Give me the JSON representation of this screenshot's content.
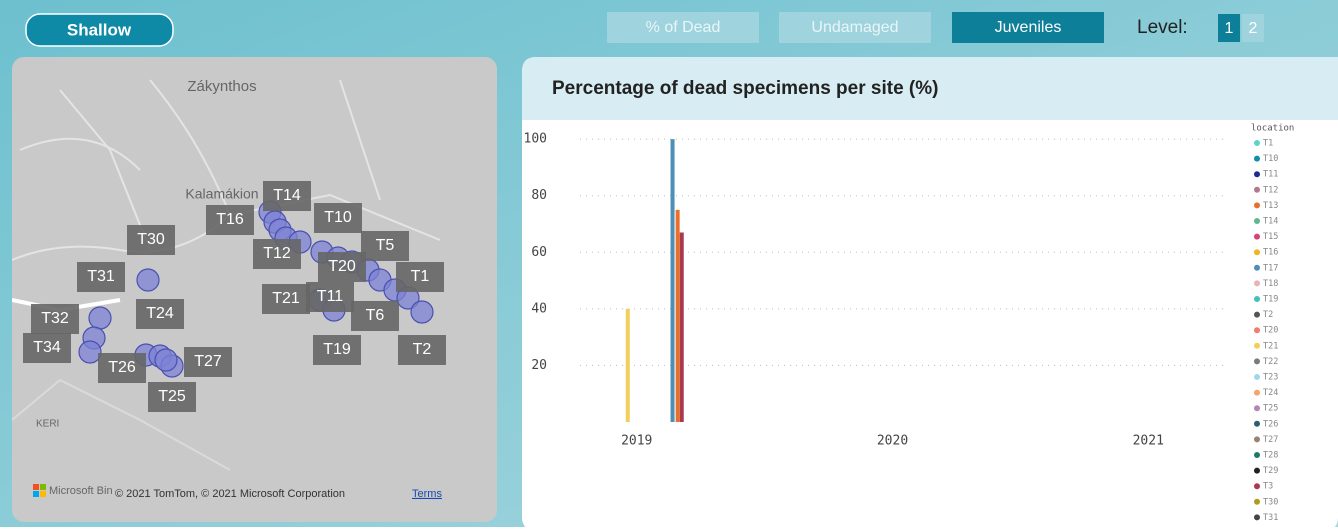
{
  "toolbar": {
    "scope": "Shallow",
    "tabs": [
      "% of Dead",
      "Undamaged",
      "Juveniles"
    ],
    "active_tab": 2,
    "level_label": "Level:",
    "levels": [
      "1",
      "2"
    ],
    "active_level": 0
  },
  "map": {
    "places": [
      "Zákynthos",
      "Kalamákion",
      "KERI"
    ],
    "sites": [
      "T14",
      "T16",
      "T10",
      "T12",
      "T5",
      "T30",
      "T20",
      "T1",
      "T31",
      "T21",
      "T11",
      "T24",
      "T6",
      "T32",
      "T19",
      "T2",
      "T34",
      "T26",
      "T27",
      "T25"
    ],
    "brand": "Microsoft Bing",
    "attribution": "© 2021 TomTom, © 2021 Microsoft Corporation",
    "terms": "Terms"
  },
  "chart_data": {
    "type": "bar",
    "title": "Percentage of dead specimens per site (%)",
    "legend_title": "location",
    "x": [
      2018.965,
      2019.14,
      2019.16,
      2019.176
    ],
    "xlim": [
      2018.7,
      2021.3
    ],
    "xticks": [
      2019,
      2020,
      2021
    ],
    "ylim": [
      0,
      105
    ],
    "yticks": [
      20,
      40,
      60,
      80,
      100
    ],
    "grid": true,
    "series": [
      {
        "name": "T1",
        "color": "#5fd3c9",
        "values": [
          null,
          null,
          null,
          null
        ]
      },
      {
        "name": "T10",
        "color": "#118dad",
        "values": [
          null,
          null,
          null,
          null
        ]
      },
      {
        "name": "T11",
        "color": "#1f2b8f",
        "values": [
          null,
          null,
          null,
          null
        ]
      },
      {
        "name": "T12",
        "color": "#b07a8c",
        "values": [
          null,
          null,
          null,
          null
        ]
      },
      {
        "name": "T13",
        "color": "#e8702a",
        "values": [
          null,
          null,
          75,
          null
        ]
      },
      {
        "name": "T14",
        "color": "#5cb88f",
        "values": [
          null,
          null,
          null,
          null
        ]
      },
      {
        "name": "T15",
        "color": "#d6456f",
        "values": [
          null,
          null,
          null,
          null
        ]
      },
      {
        "name": "T16",
        "color": "#f0b41f",
        "values": [
          null,
          null,
          null,
          null
        ]
      },
      {
        "name": "T17",
        "color": "#4e8fb8",
        "values": [
          null,
          100,
          null,
          null
        ]
      },
      {
        "name": "T18",
        "color": "#e6b3b8",
        "values": [
          null,
          null,
          null,
          null
        ]
      },
      {
        "name": "T19",
        "color": "#3fc1c0",
        "values": [
          null,
          null,
          null,
          null
        ]
      },
      {
        "name": "T2",
        "color": "#555555",
        "values": [
          null,
          null,
          null,
          null
        ]
      },
      {
        "name": "T20",
        "color": "#f07b72",
        "values": [
          null,
          null,
          null,
          null
        ]
      },
      {
        "name": "T21",
        "color": "#f2cf5b",
        "values": [
          40,
          null,
          null,
          null
        ]
      },
      {
        "name": "T22",
        "color": "#7a7a7a",
        "values": [
          null,
          null,
          null,
          null
        ]
      },
      {
        "name": "T23",
        "color": "#9fd8ea",
        "values": [
          null,
          null,
          null,
          null
        ]
      },
      {
        "name": "T24",
        "color": "#f5a46b",
        "values": [
          null,
          null,
          null,
          null
        ]
      },
      {
        "name": "T25",
        "color": "#b584b4",
        "values": [
          null,
          null,
          null,
          null
        ]
      },
      {
        "name": "T26",
        "color": "#2e5e6e",
        "values": [
          null,
          null,
          null,
          null
        ]
      },
      {
        "name": "T27",
        "color": "#9a8270",
        "values": [
          null,
          null,
          null,
          null
        ]
      },
      {
        "name": "T28",
        "color": "#1a7a6a",
        "values": [
          null,
          null,
          null,
          null
        ]
      },
      {
        "name": "T29",
        "color": "#222222",
        "values": [
          null,
          null,
          null,
          null
        ]
      },
      {
        "name": "T3",
        "color": "#a8394e",
        "values": [
          null,
          null,
          null,
          67
        ]
      },
      {
        "name": "T30",
        "color": "#b09a1e",
        "values": [
          null,
          null,
          null,
          null
        ]
      },
      {
        "name": "T31",
        "color": "#444444",
        "values": [
          null,
          null,
          null,
          null
        ]
      }
    ]
  }
}
